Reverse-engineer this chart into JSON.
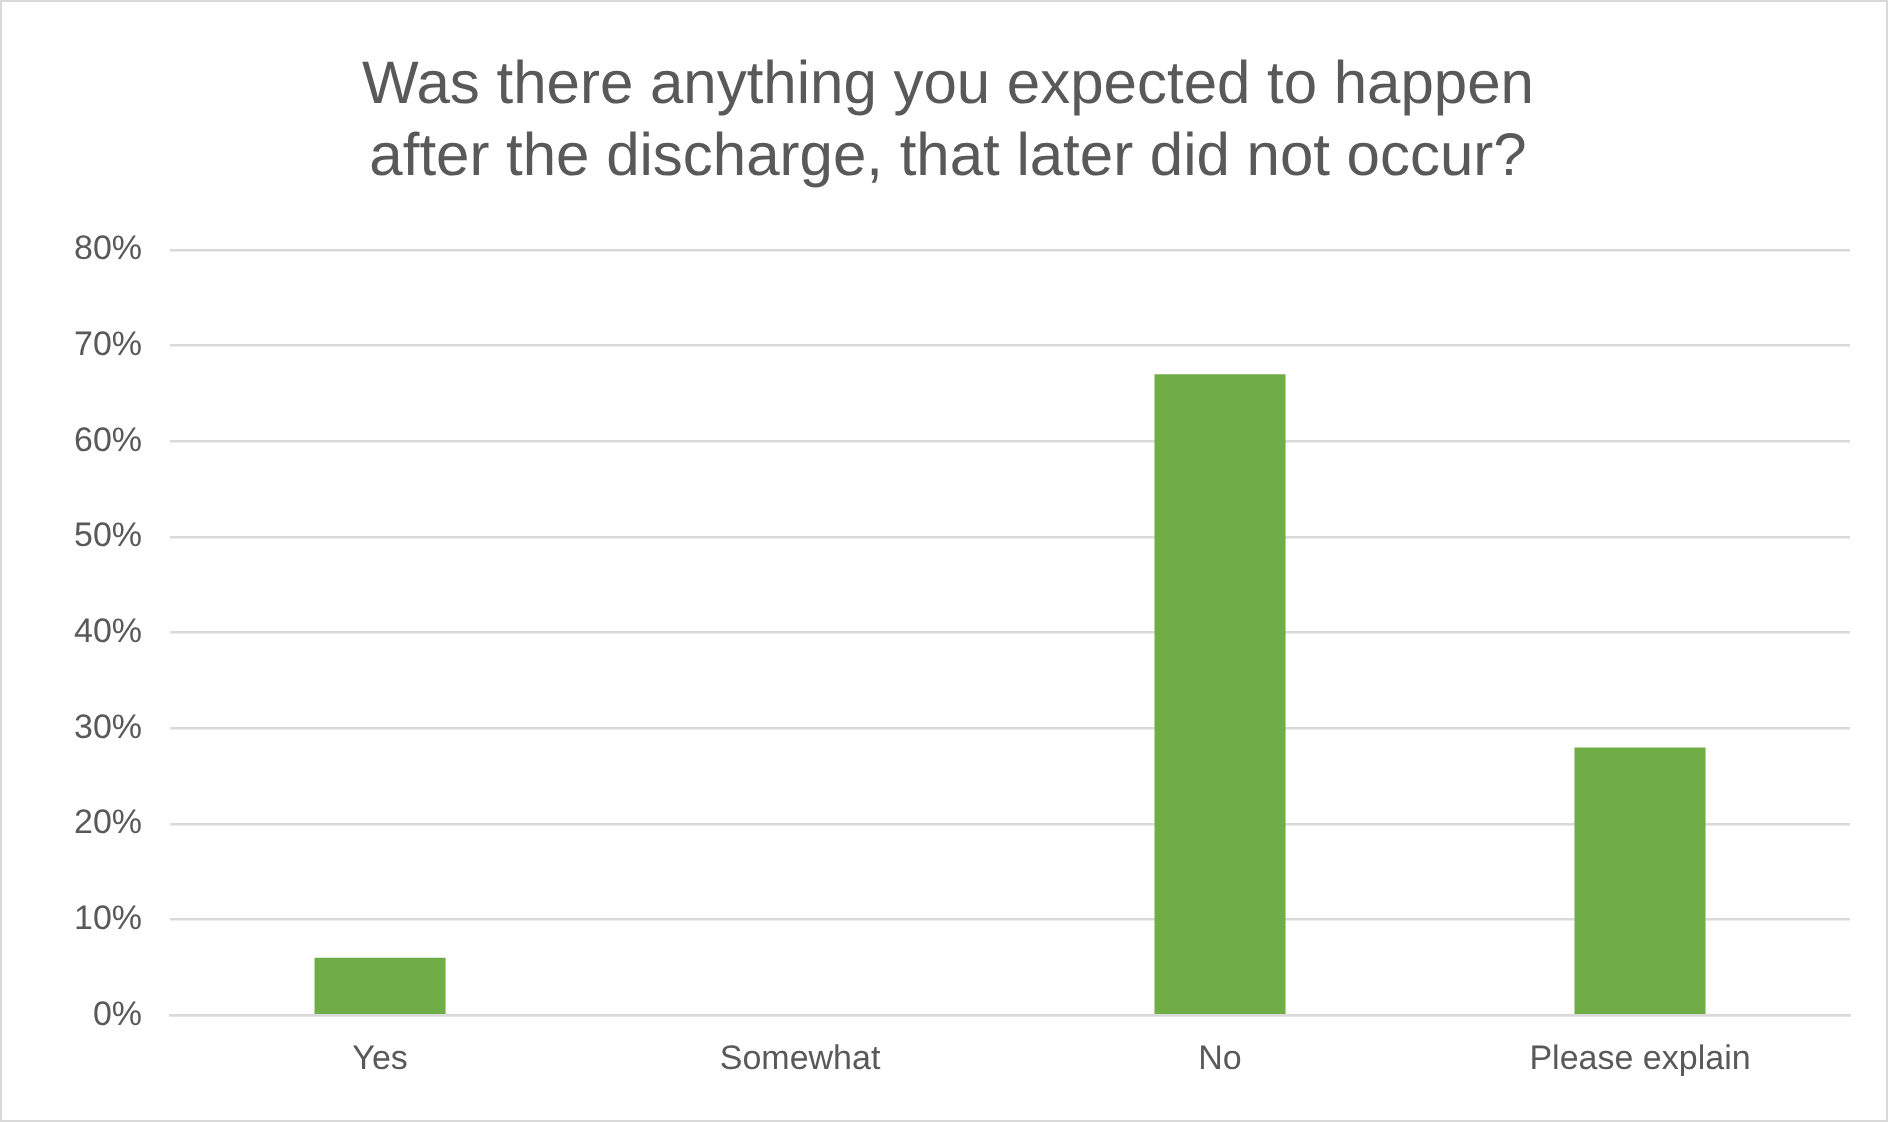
{
  "chart_data": {
    "type": "bar",
    "title": "Was there anything you expected to happen after the discharge, that later did not occur?",
    "categories": [
      "Yes",
      "Somewhat",
      "No",
      "Please explain"
    ],
    "values": [
      6,
      0,
      67,
      28
    ],
    "color": "#70ad47",
    "ylim": [
      0,
      80
    ],
    "yticks": [
      {
        "value": 0,
        "label": "0%"
      },
      {
        "value": 10,
        "label": "10%"
      },
      {
        "value": 20,
        "label": "20%"
      },
      {
        "value": 30,
        "label": "30%"
      },
      {
        "value": 40,
        "label": "40%"
      },
      {
        "value": 50,
        "label": "50%"
      },
      {
        "value": 60,
        "label": "60%"
      },
      {
        "value": 70,
        "label": "70%"
      },
      {
        "value": 80,
        "label": "80%"
      }
    ],
    "grid": "y",
    "legend": false
  }
}
